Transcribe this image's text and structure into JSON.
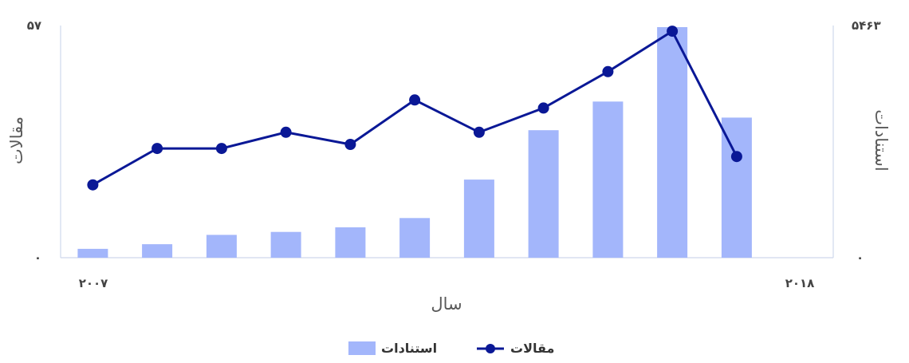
{
  "chart_data": {
    "type": "bar+line",
    "x": [
      2007,
      2008,
      2009,
      2010,
      2011,
      2012,
      2013,
      2014,
      2015,
      2016,
      2017,
      2018
    ],
    "x_tick_labels": {
      "first": "۲۰۰۷",
      "last": "۲۰۱۸"
    },
    "xlabel": "سال",
    "left_axis": {
      "label": "مقالات",
      "min_label": "۰",
      "max_label": "۵۷",
      "range": [
        0,
        57
      ]
    },
    "right_axis": {
      "label": "استنادات",
      "min_label": "۰",
      "max_label": "۵۴۶۳",
      "range": [
        0,
        5463
      ]
    },
    "series": [
      {
        "name": "استنادات",
        "type": "bar",
        "axis": "right",
        "color": "#a3b6fb",
        "values": [
          210,
          320,
          540,
          610,
          720,
          940,
          1850,
          3020,
          3700,
          5463,
          3320,
          0
        ]
      },
      {
        "name": "مقالات",
        "type": "line",
        "axis": "left",
        "color": "#0a1896",
        "values": [
          18,
          27,
          27,
          31,
          28,
          39,
          31,
          37,
          46,
          56,
          25,
          null
        ]
      }
    ],
    "legend_position": "bottom-center",
    "grid": false
  }
}
